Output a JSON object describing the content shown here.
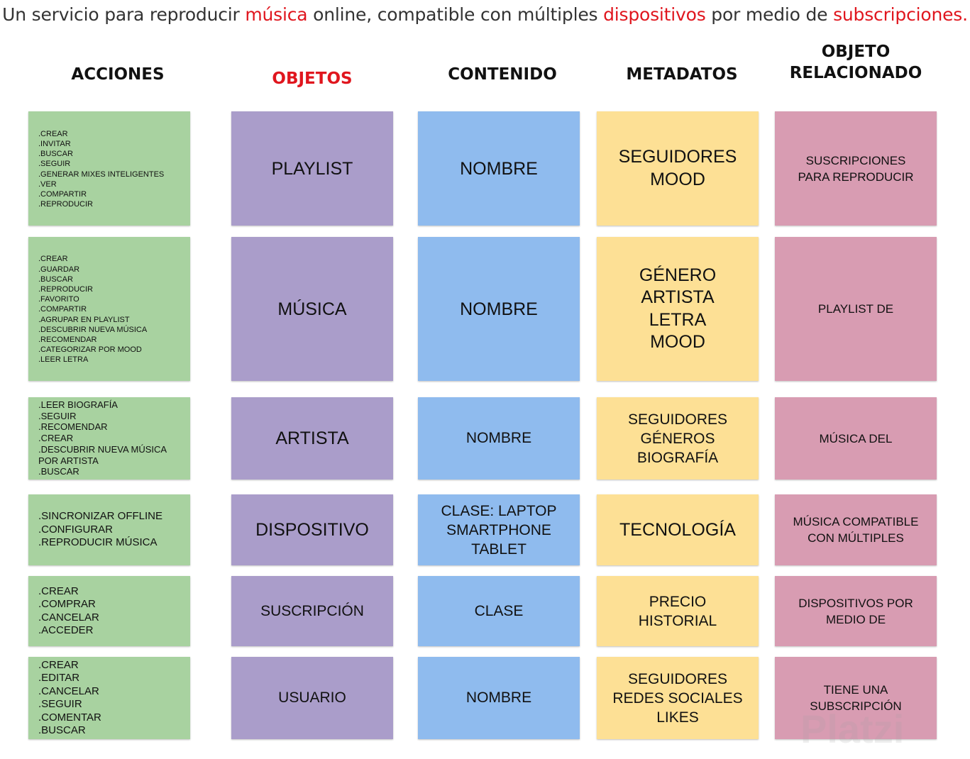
{
  "headline": {
    "part1": "Un servicio para reproducir ",
    "word1": "música",
    "part2": " online, compatible con múltiples ",
    "word2": "dispositivos",
    "part3": " por medio de ",
    "word3": "subscripciones."
  },
  "columns": [
    {
      "label": "ACCIONES",
      "color": "#111111"
    },
    {
      "label": "OBJETOS",
      "color": "#e0161e"
    },
    {
      "label": "CONTENIDO",
      "color": "#111111"
    },
    {
      "label": "METADATOS",
      "color": "#111111"
    },
    {
      "label": "OBJETO RELACIONADO",
      "lines": [
        "OBJETO",
        "RELACIONADO"
      ],
      "color": "#111111"
    }
  ],
  "colors": {
    "acciones": "#a8d2a0",
    "objetos": "#aa9dca",
    "contenido": "#8fbbee",
    "metadatos": "#fde095",
    "relacionado": "#d89cb2",
    "highlight": "#e0161e"
  },
  "rows": [
    {
      "acciones": [
        ".CREAR",
        ".INVITAR",
        ".BUSCAR",
        ".SEGUIR",
        ".GENERAR MIXES INTELIGENTES",
        ".VER",
        ".COMPARTIR",
        ".REPRODUCIR"
      ],
      "objeto": [
        "PLAYLIST"
      ],
      "contenido": [
        "NOMBRE"
      ],
      "metadatos": [
        "SEGUIDORES",
        "MOOD"
      ],
      "relacionado": [
        "SUSCRIPCIONES",
        "PARA REPRODUCIR"
      ]
    },
    {
      "acciones": [
        ".CREAR",
        ".GUARDAR",
        ".BUSCAR",
        ".REPRODUCIR",
        ".FAVORITO",
        ".COMPARTIR",
        ".AGRUPAR EN PLAYLIST",
        ".DESCUBRIR NUEVA MÚSICA",
        ".RECOMENDAR",
        ".CATEGORIZAR POR MOOD",
        ".LEER LETRA"
      ],
      "objeto": [
        "MÚSICA"
      ],
      "contenido": [
        "NOMBRE"
      ],
      "metadatos": [
        "GÉNERO",
        "ARTISTA",
        "LETRA",
        "MOOD"
      ],
      "relacionado": [
        "PLAYLIST DE"
      ]
    },
    {
      "acciones": [
        ".LEER BIOGRAFÍA",
        ".SEGUIR",
        ".RECOMENDAR",
        ".CREAR",
        ".DESCUBRIR NUEVA MÚSICA",
        "POR ARTISTA",
        ".BUSCAR"
      ],
      "objeto": [
        "ARTISTA"
      ],
      "contenido": [
        "NOMBRE"
      ],
      "metadatos": [
        "SEGUIDORES",
        "GÉNEROS",
        "BIOGRAFÍA"
      ],
      "relacionado": [
        "MÚSICA DEL"
      ]
    },
    {
      "acciones": [
        ".SINCRONIZAR OFFLINE",
        ".CONFIGURAR",
        ".REPRODUCIR MÚSICA"
      ],
      "objeto": [
        "DISPOSITIVO"
      ],
      "contenido": [
        "CLASE: LAPTOP",
        "SMARTPHONE",
        "TABLET"
      ],
      "metadatos": [
        "TECNOLOGÍA"
      ],
      "relacionado": [
        "MÚSICA COMPATIBLE",
        "CON MÚLTIPLES"
      ]
    },
    {
      "acciones": [
        ".CREAR",
        ".COMPRAR",
        ".CANCELAR",
        ".ACCEDER"
      ],
      "objeto": [
        "SUSCRIPCIÓN"
      ],
      "contenido": [
        "CLASE"
      ],
      "metadatos": [
        "PRECIO",
        "HISTORIAL"
      ],
      "relacionado": [
        "DISPOSITIVOS POR",
        "MEDIO DE"
      ]
    },
    {
      "acciones": [
        ".CREAR",
        ".EDITAR",
        ".CANCELAR",
        ".SEGUIR",
        ".COMENTAR",
        ".BUSCAR"
      ],
      "objeto": [
        "USUARIO"
      ],
      "contenido": [
        "NOMBRE"
      ],
      "metadatos": [
        "SEGUIDORES",
        "REDES SOCIALES",
        "LIKES"
      ],
      "relacionado": [
        "TIENE UNA",
        "SUBSCRIPCIÓN"
      ]
    }
  ],
  "watermark": "Platzi"
}
